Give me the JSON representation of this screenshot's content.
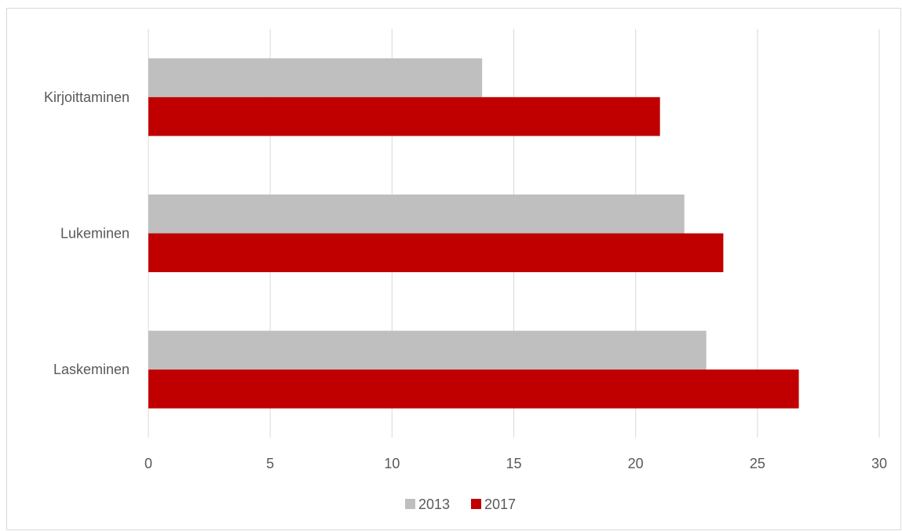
{
  "chart_data": {
    "type": "bar",
    "orientation": "horizontal",
    "title": "",
    "xlabel": "",
    "ylabel": "",
    "categories": [
      "Kirjoittaminen",
      "Lukeminen",
      "Laskeminen"
    ],
    "series": [
      {
        "name": "2013",
        "color": "#bfbfbf",
        "values": [
          13.7,
          22.0,
          22.9
        ]
      },
      {
        "name": "2017",
        "color": "#c00000",
        "values": [
          21.0,
          23.6,
          26.7
        ]
      }
    ],
    "xlim": [
      0,
      30
    ],
    "xticks": [
      "0",
      "5",
      "10",
      "15",
      "20",
      "25",
      "30"
    ],
    "grid": "vertical",
    "legend": "bottom"
  }
}
